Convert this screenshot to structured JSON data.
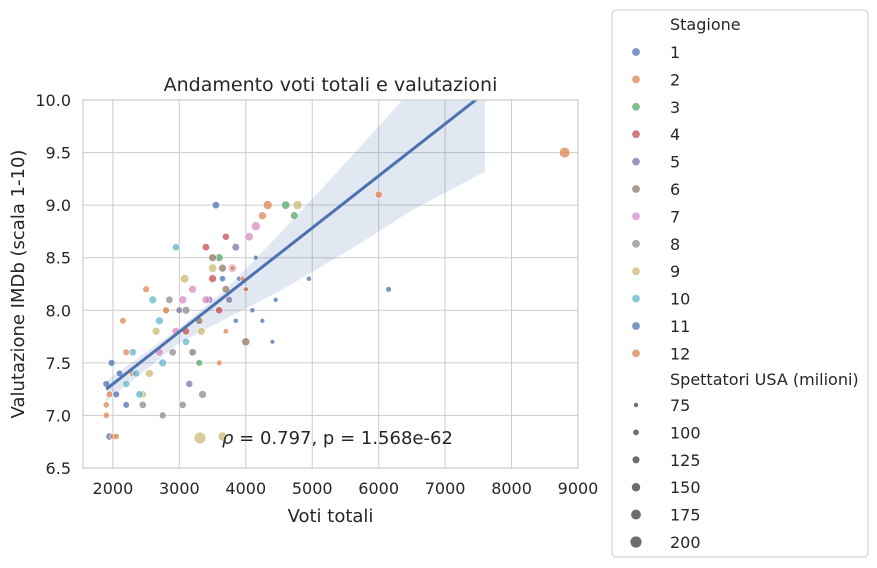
{
  "chart_data": {
    "type": "scatter",
    "title": "Andamento voti totali e valutazioni",
    "xlabel": "Voti totali",
    "ylabel": "Valutazione IMDb (scala 1-10)",
    "xlim": [
      1550,
      9000
    ],
    "ylim": [
      6.5,
      10.0
    ],
    "xticks": [
      2000,
      3000,
      4000,
      5000,
      6000,
      7000,
      8000,
      9000
    ],
    "yticks": [
      6.5,
      7.0,
      7.5,
      8.0,
      8.5,
      9.0,
      9.5,
      10.0
    ],
    "xtick_labels": [
      "2000",
      "3000",
      "4000",
      "5000",
      "6000",
      "7000",
      "8000",
      "9000"
    ],
    "ytick_labels": [
      "6.5",
      "7.0",
      "7.5",
      "8.0",
      "8.5",
      "9.0",
      "9.5",
      "10.0"
    ],
    "grid": true,
    "annotation": "ρ = 0.797, p = 1.568e-62",
    "annotation_rho": "ρ",
    "annotation_rest": " = 0.797, p = 1.568e-62",
    "regression": {
      "x": [
        1900,
        7500
      ],
      "y": [
        7.25,
        10.02
      ],
      "band_upper": [
        [
          1900,
          7.33
        ],
        [
          3000,
          7.83
        ],
        [
          3700,
          8.2
        ],
        [
          4500,
          8.72
        ],
        [
          5500,
          9.4
        ],
        [
          6500,
          10.1
        ],
        [
          7600,
          10.95
        ]
      ],
      "band_lower": [
        [
          7600,
          9.32
        ],
        [
          6500,
          8.95
        ],
        [
          5500,
          8.55
        ],
        [
          4500,
          8.18
        ],
        [
          3700,
          7.92
        ],
        [
          3000,
          7.69
        ],
        [
          1900,
          7.13
        ]
      ]
    },
    "legend": {
      "title": "Stagione",
      "placement": "outside-right",
      "hue_entries": [
        "1",
        "2",
        "3",
        "4",
        "5",
        "6",
        "7",
        "8",
        "9",
        "10",
        "11",
        "12"
      ],
      "size_title": "Spettatori USA (milioni)",
      "size_entries": [
        "75",
        "100",
        "125",
        "150",
        "175",
        "200"
      ],
      "size_values": [
        75,
        100,
        125,
        150,
        175,
        200
      ]
    },
    "colors": {
      "1": "#4c72b0",
      "2": "#dd8452",
      "3": "#55a868",
      "4": "#c44e52",
      "5": "#8172b3",
      "6": "#937860",
      "7": "#da8bc3",
      "8": "#8c8c8c",
      "9": "#ccb974",
      "10": "#64b5cd",
      "11": "#4c72b0",
      "12": "#dd8452",
      "regression": "#4c72b0",
      "band": "#4c72b0",
      "grid": "#cccccc"
    },
    "series": [
      {
        "name": "1",
        "points": [
          [
            1950,
            6.8,
            130
          ],
          [
            1900,
            7.3,
            120
          ],
          [
            1980,
            7.5,
            120
          ],
          [
            2050,
            7.2,
            120
          ],
          [
            2100,
            7.4,
            115
          ],
          [
            2200,
            7.1,
            115
          ]
        ]
      },
      {
        "name": "2",
        "points": [
          [
            1900,
            7.0,
            110
          ],
          [
            1950,
            7.2,
            115
          ],
          [
            2000,
            6.8,
            110
          ],
          [
            2150,
            7.9,
            115
          ],
          [
            2300,
            7.4,
            115
          ],
          [
            2500,
            8.2,
            120
          ],
          [
            4250,
            8.9,
            140
          ],
          [
            4330,
            9.0,
            160
          ],
          [
            6000,
            9.1,
            130
          ],
          [
            8800,
            9.5,
            190
          ]
        ]
      },
      {
        "name": "3",
        "points": [
          [
            3300,
            7.5,
            120
          ],
          [
            3600,
            8.5,
            140
          ],
          [
            4600,
            9.0,
            150
          ],
          [
            4730,
            8.9,
            140
          ]
        ]
      },
      {
        "name": "4",
        "points": [
          [
            3400,
            8.6,
            130
          ],
          [
            3500,
            8.3,
            140
          ],
          [
            3600,
            8.0,
            130
          ],
          [
            3700,
            8.7,
            125
          ],
          [
            3100,
            7.8,
            130
          ]
        ]
      },
      {
        "name": "5",
        "points": [
          [
            3000,
            8.0,
            120
          ],
          [
            3150,
            7.3,
            125
          ],
          [
            3450,
            8.1,
            130
          ],
          [
            3850,
            8.6,
            135
          ],
          [
            3750,
            8.1,
            125
          ]
        ]
      },
      {
        "name": "6",
        "points": [
          [
            3300,
            7.9,
            130
          ],
          [
            3500,
            8.5,
            140
          ],
          [
            3700,
            8.2,
            135
          ],
          [
            4000,
            7.7,
            145
          ],
          [
            3200,
            7.6,
            130
          ],
          [
            3650,
            8.4,
            140
          ]
        ]
      },
      {
        "name": "7",
        "points": [
          [
            2700,
            7.6,
            140
          ],
          [
            2950,
            7.8,
            140
          ],
          [
            3050,
            8.1,
            145
          ],
          [
            3200,
            8.2,
            140
          ],
          [
            3400,
            8.1,
            140
          ],
          [
            3800,
            8.4,
            150
          ],
          [
            4050,
            8.7,
            150
          ],
          [
            4150,
            8.8,
            160
          ]
        ]
      },
      {
        "name": "8",
        "points": [
          [
            2450,
            7.1,
            130
          ],
          [
            2750,
            7.0,
            125
          ],
          [
            2850,
            8.1,
            130
          ],
          [
            3050,
            7.1,
            130
          ],
          [
            3350,
            7.2,
            140
          ],
          [
            2900,
            7.6,
            130
          ],
          [
            3100,
            8.0,
            140
          ]
        ]
      },
      {
        "name": "9",
        "points": [
          [
            2450,
            7.2,
            130
          ],
          [
            2550,
            7.4,
            140
          ],
          [
            2650,
            7.8,
            140
          ],
          [
            2800,
            8.0,
            140
          ],
          [
            3080,
            8.3,
            150
          ],
          [
            3500,
            8.4,
            150
          ],
          [
            3330,
            7.8,
            140
          ],
          [
            3650,
            6.8,
            160
          ],
          [
            4780,
            9.0,
            160
          ]
        ]
      },
      {
        "name": "10",
        "points": [
          [
            2200,
            7.3,
            130
          ],
          [
            2350,
            7.4,
            130
          ],
          [
            2400,
            7.2,
            130
          ],
          [
            2600,
            8.1,
            140
          ],
          [
            2700,
            7.9,
            140
          ],
          [
            2950,
            8.6,
            130
          ],
          [
            3100,
            7.7,
            130
          ],
          [
            2300,
            7.6,
            130
          ],
          [
            2750,
            7.5,
            140
          ]
        ]
      },
      {
        "name": "11",
        "points": [
          [
            3550,
            9.0,
            130
          ],
          [
            3650,
            8.3,
            110
          ],
          [
            3900,
            8.3,
            90
          ],
          [
            4150,
            8.5,
            85
          ],
          [
            4100,
            8.0,
            90
          ],
          [
            4250,
            7.9,
            85
          ],
          [
            4400,
            7.7,
            80
          ],
          [
            4450,
            8.1,
            85
          ],
          [
            4950,
            8.3,
            90
          ],
          [
            6150,
            8.2,
            100
          ],
          [
            3850,
            7.9,
            90
          ],
          [
            4000,
            8.2,
            85
          ]
        ]
      },
      {
        "name": "12",
        "points": [
          [
            3600,
            7.5,
            100
          ],
          [
            3800,
            8.4,
            95
          ],
          [
            3950,
            8.3,
            90
          ],
          [
            3700,
            7.8,
            95
          ],
          [
            4000,
            8.2,
            90
          ],
          [
            2800,
            8.0,
            120
          ],
          [
            1900,
            7.1,
            110
          ],
          [
            2050,
            6.8,
            110
          ],
          [
            2200,
            7.6,
            115
          ]
        ]
      }
    ]
  }
}
